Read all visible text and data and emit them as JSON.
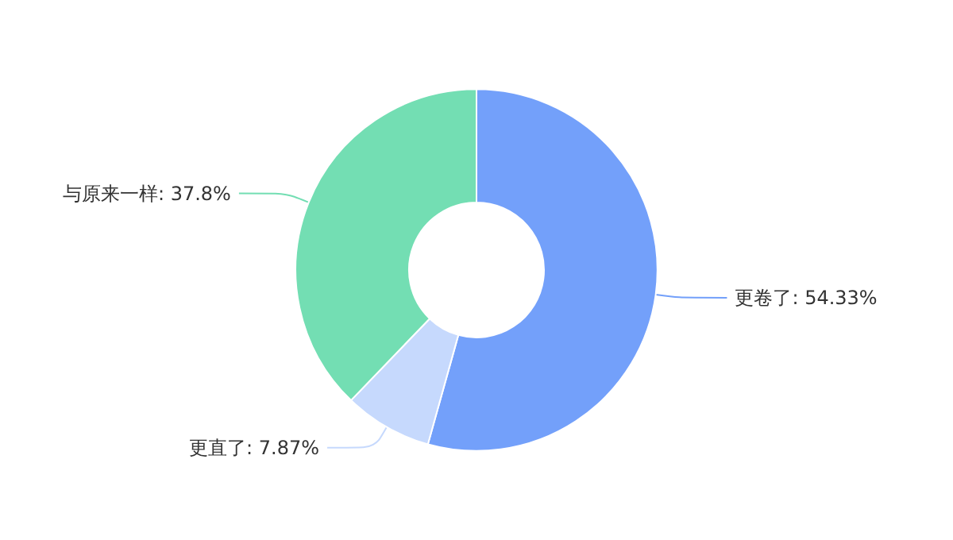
{
  "chart_data": {
    "type": "donut",
    "categories": [
      "更卷了",
      "更直了",
      "与原来一样"
    ],
    "values": [
      54.33,
      7.87,
      37.8
    ],
    "colors": [
      "#73a0fa",
      "#c6d9fd",
      "#73deb3"
    ],
    "value_labels": [
      "54.33%",
      "7.87%",
      "37.8%"
    ],
    "legend": false
  }
}
